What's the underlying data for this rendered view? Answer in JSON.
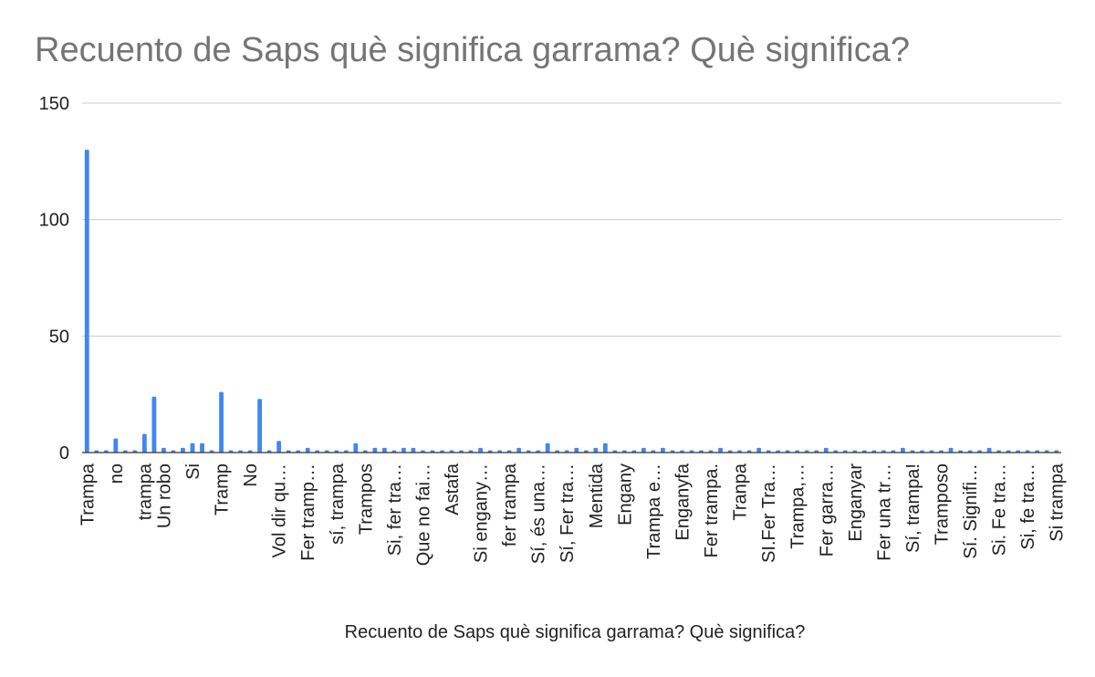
{
  "chart_data": {
    "type": "bar",
    "title": "Recuento de Saps què significa garrama? Què significa?",
    "xlabel": "Recuento de Saps què significa garrama? Què significa?",
    "ylabel": "",
    "ylim": [
      0,
      150
    ],
    "yticks": [
      0,
      50,
      100,
      150
    ],
    "grid": true,
    "legend": "none",
    "bar_color": "#4285f4",
    "categories": [
      "Trampa",
      "",
      "",
      "no",
      "",
      "",
      "trampa",
      "",
      "Un robo",
      "",
      "",
      "Si",
      "",
      "",
      "Tramp",
      "",
      "",
      "No",
      "",
      "",
      "Vol dir qu…",
      "",
      "",
      "Fer tramp…",
      "",
      "",
      "sí, trampa",
      "",
      "",
      "Trampos",
      "",
      "",
      "Si, fer tra…",
      "",
      "",
      "Que no fai…",
      "",
      "",
      "Astafa",
      "",
      "",
      "Si engany…",
      "",
      "",
      "fer trampa",
      "",
      "",
      "Sí, és una…",
      "",
      "",
      "Sí, Fer tra…",
      "",
      "",
      "Mentida",
      "",
      "",
      "Engany",
      "",
      "",
      "Trampa e…",
      "",
      "",
      "Enganyfa",
      "",
      "",
      "Fer trampa.",
      "",
      "",
      "Tranpa",
      "",
      "",
      "SI.Fer Tra…",
      "",
      "",
      "Trampa,…",
      "",
      "",
      "Fer garra…",
      "",
      "",
      "Enganyar",
      "",
      "",
      "Fer una tr…",
      "",
      "",
      "Sí, trampa!",
      "",
      "",
      "Tramposo",
      "",
      "",
      "Sí. Signifi…",
      "",
      "",
      "Si. Fe tra…",
      "",
      "",
      "Si,  fe tra…",
      "",
      "",
      "Si trampa"
    ],
    "values": [
      130,
      1,
      1,
      6,
      1,
      1,
      8,
      24,
      2,
      1,
      2,
      4,
      4,
      1,
      26,
      1,
      1,
      1,
      23,
      1,
      5,
      1,
      1,
      2,
      1,
      1,
      1,
      1,
      4,
      1,
      2,
      2,
      1,
      2,
      2,
      1,
      1,
      1,
      1,
      1,
      1,
      2,
      1,
      1,
      1,
      2,
      1,
      1,
      4,
      1,
      1,
      2,
      1,
      2,
      4,
      1,
      1,
      1,
      2,
      1,
      2,
      1,
      1,
      1,
      1,
      1,
      2,
      1,
      1,
      1,
      2,
      1,
      1,
      1,
      1,
      1,
      1,
      2,
      1,
      1,
      1,
      1,
      1,
      1,
      1,
      2,
      1,
      1,
      1,
      1,
      2,
      1,
      1,
      1,
      2,
      1,
      1,
      1,
      1,
      1,
      1,
      1
    ]
  }
}
